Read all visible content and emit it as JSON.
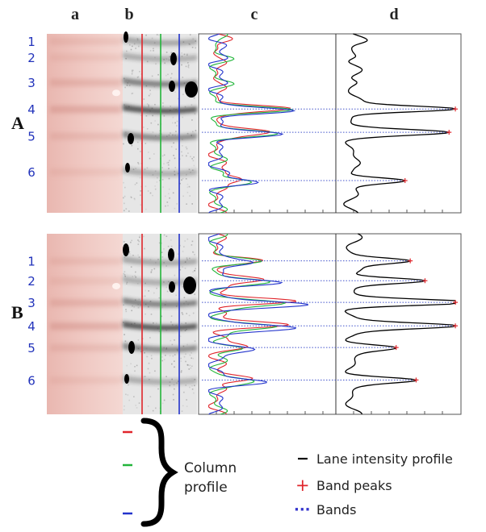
{
  "column_letters": [
    "a",
    "b",
    "c",
    "d"
  ],
  "panels": [
    {
      "label": "A",
      "band_numbers": [
        "1",
        "2",
        "3",
        "4",
        "5",
        "6"
      ],
      "band_positions": [
        0.04,
        0.13,
        0.27,
        0.42,
        0.57,
        0.77
      ],
      "peaks": [
        {
          "position": 0.42,
          "intensity": 0.87
        },
        {
          "position": 0.55,
          "intensity": 0.73
        },
        {
          "position": 0.82,
          "intensity": 0.43
        }
      ]
    },
    {
      "label": "B",
      "band_numbers": [
        "1",
        "2",
        "3",
        "4",
        "5",
        "6"
      ],
      "band_positions": [
        0.15,
        0.26,
        0.38,
        0.51,
        0.63,
        0.81
      ],
      "peaks": [
        {
          "position": 0.15,
          "intensity": 0.44
        },
        {
          "position": 0.26,
          "intensity": 0.62
        },
        {
          "position": 0.38,
          "intensity": 0.95
        },
        {
          "position": 0.51,
          "intensity": 0.82
        },
        {
          "position": 0.63,
          "intensity": 0.3
        },
        {
          "position": 0.81,
          "intensity": 0.44
        }
      ]
    }
  ],
  "legend": {
    "column_profile_label": "Column profile",
    "items": [
      {
        "symbol": "−",
        "label": "Lane intensity profile",
        "color": "#000000"
      },
      {
        "symbol": "+",
        "label": "Band peaks",
        "color": "#e0252b"
      },
      {
        "symbol": "···",
        "label": "Bands",
        "color": "#3333cc"
      }
    ]
  },
  "colors": {
    "red": "#e0252b",
    "green": "#22b53a",
    "blue": "#2233cc",
    "band_number": "#2233bb",
    "dotted_band": "#4455cc",
    "lane_profile": "#000000"
  }
}
